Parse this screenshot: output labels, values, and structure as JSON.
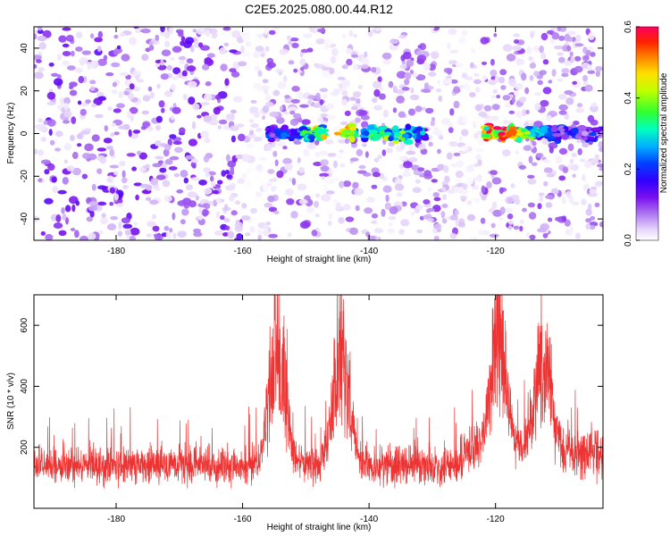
{
  "page_title": "C2E5.2025.080.00.44.R12",
  "chart_data": [
    {
      "type": "heatmap",
      "xlabel": "Height of straight line (km)",
      "ylabel": "Frequency (Hz)",
      "xlim": [
        -193,
        -103
      ],
      "ylim": [
        -50,
        50
      ],
      "xticks": [
        -180,
        -160,
        -140,
        -120
      ],
      "yticks": [
        -40,
        -20,
        0,
        20,
        40
      ],
      "colorbar": {
        "label": "Normalized spectral amplitude",
        "range": [
          0.0,
          0.6
        ],
        "ticks": [
          "0.0",
          "0.2",
          "0.4",
          "0.6"
        ],
        "colors": [
          "#ffffff",
          "#c8a8f0",
          "#9a5cf0",
          "#6b00f0",
          "#2a00ff",
          "#0060ff",
          "#00c8ff",
          "#00ff90",
          "#80ff00",
          "#ffff00",
          "#ffa000",
          "#ff3000",
          "#ff0050"
        ]
      },
      "grid": false,
      "features": {
        "background_level": 0.05,
        "gaps_x_km": [
          [
            -160,
            -156
          ],
          [
            -147,
            -144
          ],
          [
            -126,
            -122
          ]
        ],
        "signal_band_y_hz": [
          -5,
          5
        ],
        "signal_segments": [
          {
            "x": [
              -158,
              -142
            ],
            "peak_x": -145,
            "peak_value": 0.5
          },
          {
            "x": [
              -141,
              -131
            ],
            "peak_x": -137,
            "peak_value": 0.3
          },
          {
            "x": [
              -125,
              -103
            ],
            "peak_x": -119,
            "peak_value": 0.6
          }
        ]
      }
    },
    {
      "type": "line",
      "xlabel": "Height of straight line (km)",
      "ylabel": "SNR (10 * v/v)",
      "xlim": [
        -193,
        -103
      ],
      "ylim": [
        0,
        700
      ],
      "xticks": [
        -180,
        -160,
        -140,
        -120
      ],
      "yticks": [
        200,
        400,
        600
      ],
      "grid": false,
      "color": "#ee3333",
      "features": {
        "baseline_mean": 140,
        "baseline_spread": 60,
        "peaks": [
          {
            "x": -154.5,
            "value": 700
          },
          {
            "x": -144.5,
            "value": 680
          },
          {
            "x": -119.5,
            "value": 690
          },
          {
            "x": -112.5,
            "value": 580
          }
        ]
      }
    }
  ]
}
